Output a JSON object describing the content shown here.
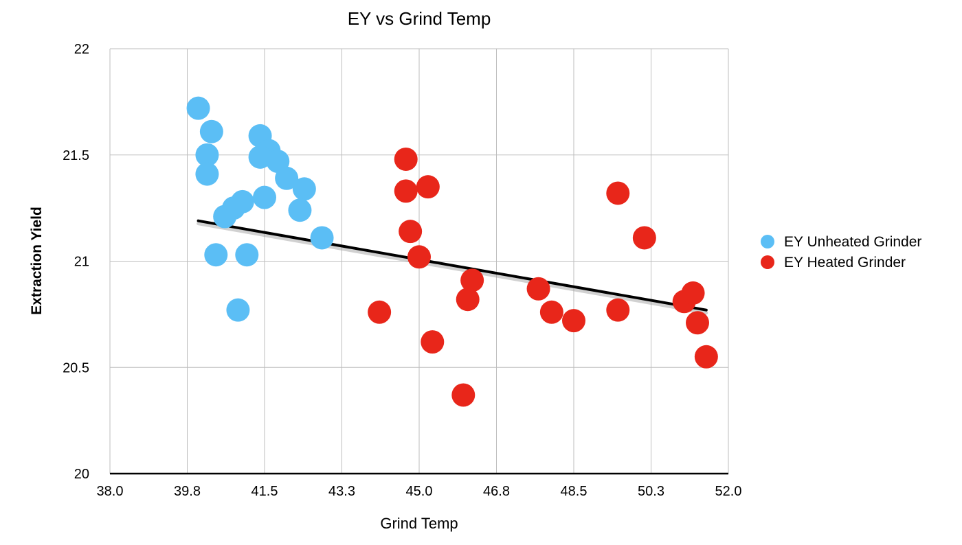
{
  "chart_data": {
    "type": "scatter",
    "title": "EY vs Grind Temp",
    "xlabel": "Grind Temp",
    "ylabel": "Extraction Yield",
    "xlim": [
      38.0,
      52.0
    ],
    "ylim": [
      20,
      22
    ],
    "x_ticks": [
      "38.0",
      "39.8",
      "41.5",
      "43.3",
      "45.0",
      "46.8",
      "48.5",
      "50.3",
      "52.0"
    ],
    "y_ticks": [
      "20",
      "20.5",
      "21",
      "21.5",
      "22"
    ],
    "grid": true,
    "legend_position": "right",
    "series": [
      {
        "name": "EY Unheated Grinder",
        "color": "#5BBEF5",
        "points": [
          {
            "x": 40.0,
            "y": 21.72
          },
          {
            "x": 40.3,
            "y": 21.61
          },
          {
            "x": 40.2,
            "y": 21.5
          },
          {
            "x": 40.2,
            "y": 21.41
          },
          {
            "x": 41.4,
            "y": 21.59
          },
          {
            "x": 41.6,
            "y": 21.52
          },
          {
            "x": 41.4,
            "y": 21.49
          },
          {
            "x": 41.8,
            "y": 21.47
          },
          {
            "x": 42.0,
            "y": 21.39
          },
          {
            "x": 42.4,
            "y": 21.34
          },
          {
            "x": 41.5,
            "y": 21.3
          },
          {
            "x": 41.0,
            "y": 21.28
          },
          {
            "x": 40.8,
            "y": 21.25
          },
          {
            "x": 42.3,
            "y": 21.24
          },
          {
            "x": 40.6,
            "y": 21.21
          },
          {
            "x": 42.8,
            "y": 21.11
          },
          {
            "x": 40.4,
            "y": 21.03
          },
          {
            "x": 41.1,
            "y": 21.03
          },
          {
            "x": 40.9,
            "y": 20.77
          }
        ]
      },
      {
        "name": "EY Heated Grinder",
        "color": "#E8261A",
        "points": [
          {
            "x": 44.7,
            "y": 21.48
          },
          {
            "x": 44.7,
            "y": 21.33
          },
          {
            "x": 45.2,
            "y": 21.35
          },
          {
            "x": 44.8,
            "y": 21.14
          },
          {
            "x": 45.0,
            "y": 21.02
          },
          {
            "x": 44.1,
            "y": 20.76
          },
          {
            "x": 45.3,
            "y": 20.62
          },
          {
            "x": 46.2,
            "y": 20.91
          },
          {
            "x": 46.1,
            "y": 20.82
          },
          {
            "x": 46.0,
            "y": 20.37
          },
          {
            "x": 47.7,
            "y": 20.87
          },
          {
            "x": 48.0,
            "y": 20.76
          },
          {
            "x": 48.5,
            "y": 20.72
          },
          {
            "x": 49.5,
            "y": 20.77
          },
          {
            "x": 49.5,
            "y": 21.32
          },
          {
            "x": 50.1,
            "y": 21.11
          },
          {
            "x": 51.0,
            "y": 20.81
          },
          {
            "x": 51.2,
            "y": 20.85
          },
          {
            "x": 51.3,
            "y": 20.71
          },
          {
            "x": 51.5,
            "y": 20.55
          }
        ]
      }
    ],
    "trendline": {
      "color": "#000000",
      "points": [
        {
          "x": 40.0,
          "y": 21.19
        },
        {
          "x": 51.5,
          "y": 20.77
        }
      ]
    }
  }
}
